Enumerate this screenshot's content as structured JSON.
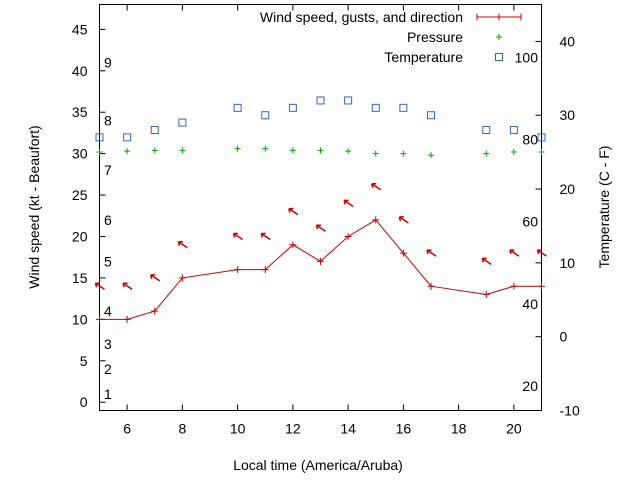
{
  "chart_data": {
    "type": "line",
    "xlabel": "Local time (America/Aruba)",
    "ylabel_left": "Wind speed (kt - Beaufort)",
    "ylabel_right": "Temperature (C - F)",
    "xlim": [
      5,
      21
    ],
    "ylim_left": [
      -1,
      48
    ],
    "ylim_right": [
      -10,
      45
    ],
    "x_ticks": [
      6,
      8,
      10,
      12,
      14,
      16,
      18,
      20
    ],
    "y_left_ticks": [
      0,
      5,
      10,
      15,
      20,
      25,
      30,
      35,
      40,
      45
    ],
    "y_right_ticks": [
      -10,
      0,
      10,
      20,
      30,
      40
    ],
    "beaufort_labels": [
      {
        "label": "1",
        "value": 1
      },
      {
        "label": "2",
        "value": 4
      },
      {
        "label": "3",
        "value": 7
      },
      {
        "label": "4",
        "value": 11
      },
      {
        "label": "5",
        "value": 17
      },
      {
        "label": "6",
        "value": 22
      },
      {
        "label": "7",
        "value": 28
      },
      {
        "label": "8",
        "value": 34
      },
      {
        "label": "9",
        "value": 41
      }
    ],
    "fahrenheit_labels": [
      {
        "label": "20",
        "value_c": -6.7
      },
      {
        "label": "40",
        "value_c": 4.4
      },
      {
        "label": "60",
        "value_c": 15.6
      },
      {
        "label": "80",
        "value_c": 26.7
      },
      {
        "label": "100",
        "value_c": 37.8
      }
    ],
    "legend": [
      {
        "name": "Wind speed, gusts, and direction",
        "color": "#cc0000",
        "marker": "line-plus"
      },
      {
        "name": "Pressure",
        "color": "#00aa00",
        "marker": "plus"
      },
      {
        "name": "Temperature",
        "color": "#3366cc",
        "marker": "square"
      }
    ],
    "legend_position": "top-right",
    "series": [
      {
        "name": "Wind speed",
        "color": "#cc0000",
        "x": [
          5,
          6,
          7,
          8,
          10,
          11,
          12,
          13,
          14,
          15,
          16,
          17,
          19,
          20,
          21
        ],
        "values": [
          10,
          10,
          11,
          15,
          16,
          16,
          19,
          17,
          20,
          22,
          18,
          14,
          13,
          14,
          14
        ]
      },
      {
        "name": "Wind direction arrows",
        "color": "#cc0000",
        "x": [
          5,
          6,
          7,
          8,
          10,
          11,
          12,
          13,
          14,
          15,
          16,
          17,
          19,
          20,
          21
        ],
        "values": [
          14,
          14,
          15,
          19,
          20,
          20,
          23,
          21,
          24,
          26,
          22,
          18,
          17,
          18,
          18
        ]
      },
      {
        "name": "Pressure",
        "color": "#00aa00",
        "axis": "left",
        "x": [
          5,
          6,
          7,
          8,
          10,
          11,
          12,
          13,
          14,
          15,
          16,
          17,
          19,
          20,
          21
        ],
        "values": [
          30.2,
          30.3,
          30.4,
          30.4,
          30.6,
          30.6,
          30.4,
          30.4,
          30.3,
          30.0,
          30.0,
          29.8,
          30.0,
          30.2,
          30.2
        ]
      },
      {
        "name": "Temperature",
        "color": "#3366cc",
        "axis": "right",
        "x": [
          5,
          6,
          7,
          8,
          10,
          11,
          12,
          13,
          14,
          15,
          16,
          17,
          19,
          20,
          21
        ],
        "values": [
          27,
          27,
          28,
          29,
          31,
          30,
          31,
          32,
          32,
          31,
          31,
          30,
          28,
          28,
          27
        ]
      }
    ]
  }
}
